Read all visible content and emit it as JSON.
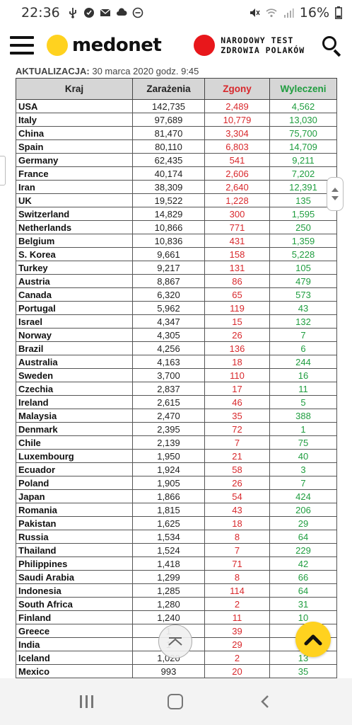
{
  "status_bar": {
    "time": "22:36",
    "battery": "16%",
    "icons": [
      "usb-icon",
      "notification-icon",
      "mail-icon",
      "cloud-icon",
      "do-not-disturb-icon",
      "mute-icon",
      "wifi-icon",
      "signal-icon"
    ]
  },
  "header": {
    "logo_text": "medonet",
    "promo_line1": "NARODOWY TEST",
    "promo_line2": "ZDROWIA POLAKÓW"
  },
  "update": {
    "label": "AKTUALIZACJA:",
    "value": "30 marca 2020 godz. 9:45"
  },
  "table": {
    "headers": {
      "country": "Kraj",
      "cases": "Zarażenia",
      "deaths": "Zgony",
      "recovered": "Wyleczeni"
    },
    "rows": [
      {
        "country": "USA",
        "cases": "142,735",
        "deaths": "2,489",
        "recovered": "4,562"
      },
      {
        "country": "Italy",
        "cases": "97,689",
        "deaths": "10,779",
        "recovered": "13,030"
      },
      {
        "country": "China",
        "cases": "81,470",
        "deaths": "3,304",
        "recovered": "75,700"
      },
      {
        "country": "Spain",
        "cases": "80,110",
        "deaths": "6,803",
        "recovered": "14,709"
      },
      {
        "country": "Germany",
        "cases": "62,435",
        "deaths": "541",
        "recovered": "9,211"
      },
      {
        "country": "France",
        "cases": "40,174",
        "deaths": "2,606",
        "recovered": "7,202"
      },
      {
        "country": "Iran",
        "cases": "38,309",
        "deaths": "2,640",
        "recovered": "12,391"
      },
      {
        "country": "UK",
        "cases": "19,522",
        "deaths": "1,228",
        "recovered": "135"
      },
      {
        "country": "Switzerland",
        "cases": "14,829",
        "deaths": "300",
        "recovered": "1,595"
      },
      {
        "country": "Netherlands",
        "cases": "10,866",
        "deaths": "771",
        "recovered": "250"
      },
      {
        "country": "Belgium",
        "cases": "10,836",
        "deaths": "431",
        "recovered": "1,359"
      },
      {
        "country": "S. Korea",
        "cases": "9,661",
        "deaths": "158",
        "recovered": "5,228"
      },
      {
        "country": "Turkey",
        "cases": "9,217",
        "deaths": "131",
        "recovered": "105"
      },
      {
        "country": "Austria",
        "cases": "8,867",
        "deaths": "86",
        "recovered": "479"
      },
      {
        "country": "Canada",
        "cases": "6,320",
        "deaths": "65",
        "recovered": "573"
      },
      {
        "country": "Portugal",
        "cases": "5,962",
        "deaths": "119",
        "recovered": "43"
      },
      {
        "country": "Israel",
        "cases": "4,347",
        "deaths": "15",
        "recovered": "132"
      },
      {
        "country": "Norway",
        "cases": "4,305",
        "deaths": "26",
        "recovered": "7"
      },
      {
        "country": "Brazil",
        "cases": "4,256",
        "deaths": "136",
        "recovered": "6"
      },
      {
        "country": "Australia",
        "cases": "4,163",
        "deaths": "18",
        "recovered": "244"
      },
      {
        "country": "Sweden",
        "cases": "3,700",
        "deaths": "110",
        "recovered": "16"
      },
      {
        "country": "Czechia",
        "cases": "2,837",
        "deaths": "17",
        "recovered": "11"
      },
      {
        "country": "Ireland",
        "cases": "2,615",
        "deaths": "46",
        "recovered": "5"
      },
      {
        "country": "Malaysia",
        "cases": "2,470",
        "deaths": "35",
        "recovered": "388"
      },
      {
        "country": "Denmark",
        "cases": "2,395",
        "deaths": "72",
        "recovered": "1"
      },
      {
        "country": "Chile",
        "cases": "2,139",
        "deaths": "7",
        "recovered": "75"
      },
      {
        "country": "Luxembourg",
        "cases": "1,950",
        "deaths": "21",
        "recovered": "40"
      },
      {
        "country": "Ecuador",
        "cases": "1,924",
        "deaths": "58",
        "recovered": "3"
      },
      {
        "country": "Poland",
        "cases": "1,905",
        "deaths": "26",
        "recovered": "7"
      },
      {
        "country": "Japan",
        "cases": "1,866",
        "deaths": "54",
        "recovered": "424"
      },
      {
        "country": "Romania",
        "cases": "1,815",
        "deaths": "43",
        "recovered": "206"
      },
      {
        "country": "Pakistan",
        "cases": "1,625",
        "deaths": "18",
        "recovered": "29"
      },
      {
        "country": "Russia",
        "cases": "1,534",
        "deaths": "8",
        "recovered": "64"
      },
      {
        "country": "Thailand",
        "cases": "1,524",
        "deaths": "7",
        "recovered": "229"
      },
      {
        "country": "Philippines",
        "cases": "1,418",
        "deaths": "71",
        "recovered": "42"
      },
      {
        "country": "Saudi Arabia",
        "cases": "1,299",
        "deaths": "8",
        "recovered": "66"
      },
      {
        "country": "Indonesia",
        "cases": "1,285",
        "deaths": "114",
        "recovered": "64"
      },
      {
        "country": "South Africa",
        "cases": "1,280",
        "deaths": "2",
        "recovered": "31"
      },
      {
        "country": "Finland",
        "cases": "1,240",
        "deaths": "11",
        "recovered": "10"
      },
      {
        "country": "Greece",
        "cases": "1",
        "deaths": "39",
        "recovered": ""
      },
      {
        "country": "India",
        "cases": "1",
        "deaths": "29",
        "recovered": ""
      },
      {
        "country": "Iceland",
        "cases": "1,020",
        "deaths": "2",
        "recovered": "13"
      },
      {
        "country": "Mexico",
        "cases": "993",
        "deaths": "20",
        "recovered": "35"
      }
    ]
  },
  "colors": {
    "accent_yellow": "#ffd21f",
    "promo_red": "#e8171b",
    "deaths_red": "#d8282c",
    "recovered_green": "#1f9d3f"
  }
}
